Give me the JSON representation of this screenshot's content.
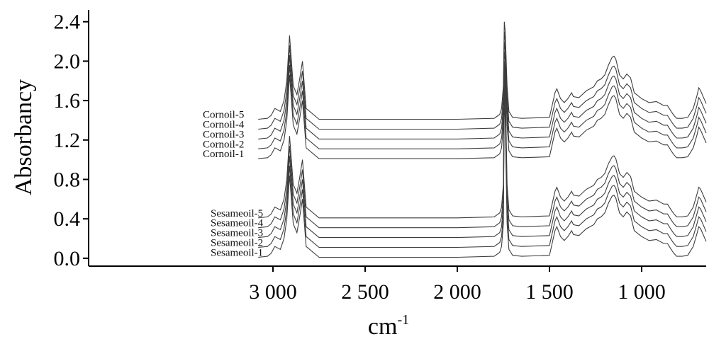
{
  "chart_data": {
    "type": "line",
    "title": "",
    "xlabel": "cm",
    "xlabel_superscript": "-1",
    "ylabel": "Absorbancy",
    "xlim": [
      4000,
      650
    ],
    "ylim": [
      -0.08,
      2.52
    ],
    "x_reversed": true,
    "grid": false,
    "legend": "none",
    "x_ticks": [
      3000,
      2500,
      2000,
      1500,
      1000
    ],
    "x_tick_labels": [
      "3 000",
      "2 500",
      "2 000",
      "1 500",
      "1 000"
    ],
    "y_ticks": [
      0.0,
      0.4,
      0.8,
      1.2,
      1.6,
      2.0,
      2.4
    ],
    "y_tick_labels": [
      "0.0",
      "0.4",
      "0.8",
      "1.2",
      "1.6",
      "2.0",
      "2.4"
    ],
    "line_color": "#3d3d3d",
    "x": [
      3080,
      3030,
      3010,
      2990,
      2960,
      2940,
      2925,
      2910,
      2890,
      2870,
      2855,
      2840,
      2820,
      2750,
      2500,
      2000,
      1800,
      1770,
      1760,
      1750,
      1745,
      1740,
      1730,
      1720,
      1700,
      1650,
      1500,
      1470,
      1460,
      1440,
      1420,
      1400,
      1380,
      1370,
      1340,
      1300,
      1260,
      1240,
      1220,
      1200,
      1180,
      1160,
      1150,
      1140,
      1120,
      1100,
      1080,
      1060,
      1040,
      1000,
      960,
      920,
      880,
      860,
      840,
      825,
      810,
      780,
      750,
      720,
      700,
      690,
      680,
      650
    ],
    "series": [
      {
        "name": "Cornoil-5",
        "values": [
          1.41,
          1.42,
          1.45,
          1.52,
          1.49,
          1.6,
          1.8,
          2.26,
          1.75,
          1.66,
          1.82,
          2.0,
          1.52,
          1.41,
          1.41,
          1.41,
          1.42,
          1.46,
          1.52,
          1.75,
          2.4,
          2.3,
          1.75,
          1.49,
          1.43,
          1.42,
          1.43,
          1.68,
          1.72,
          1.62,
          1.58,
          1.62,
          1.68,
          1.64,
          1.63,
          1.7,
          1.74,
          1.8,
          1.82,
          1.86,
          1.96,
          2.04,
          2.05,
          2.02,
          1.86,
          1.82,
          1.87,
          1.83,
          1.68,
          1.62,
          1.58,
          1.59,
          1.55,
          1.55,
          1.49,
          1.45,
          1.42,
          1.42,
          1.43,
          1.52,
          1.65,
          1.73,
          1.7,
          1.57
        ]
      },
      {
        "name": "Cornoil-4",
        "values": [
          1.31,
          1.32,
          1.35,
          1.42,
          1.39,
          1.5,
          1.7,
          2.16,
          1.65,
          1.56,
          1.72,
          1.9,
          1.42,
          1.31,
          1.31,
          1.31,
          1.32,
          1.36,
          1.42,
          1.65,
          2.3,
          2.2,
          1.65,
          1.39,
          1.33,
          1.32,
          1.33,
          1.58,
          1.62,
          1.52,
          1.48,
          1.52,
          1.58,
          1.54,
          1.53,
          1.6,
          1.64,
          1.7,
          1.72,
          1.76,
          1.86,
          1.94,
          1.95,
          1.92,
          1.76,
          1.72,
          1.77,
          1.73,
          1.58,
          1.52,
          1.48,
          1.49,
          1.45,
          1.45,
          1.39,
          1.35,
          1.32,
          1.32,
          1.33,
          1.42,
          1.55,
          1.63,
          1.6,
          1.47
        ]
      },
      {
        "name": "Cornoil-3",
        "values": [
          1.21,
          1.22,
          1.25,
          1.32,
          1.29,
          1.4,
          1.6,
          2.06,
          1.55,
          1.46,
          1.62,
          1.8,
          1.32,
          1.21,
          1.21,
          1.21,
          1.22,
          1.26,
          1.32,
          1.55,
          2.2,
          2.1,
          1.55,
          1.29,
          1.23,
          1.22,
          1.23,
          1.48,
          1.52,
          1.42,
          1.38,
          1.42,
          1.48,
          1.44,
          1.43,
          1.5,
          1.54,
          1.6,
          1.62,
          1.66,
          1.76,
          1.84,
          1.85,
          1.82,
          1.66,
          1.62,
          1.67,
          1.63,
          1.48,
          1.42,
          1.38,
          1.39,
          1.35,
          1.35,
          1.29,
          1.25,
          1.22,
          1.22,
          1.23,
          1.32,
          1.45,
          1.53,
          1.5,
          1.37
        ]
      },
      {
        "name": "Cornoil-2",
        "values": [
          1.11,
          1.12,
          1.15,
          1.22,
          1.19,
          1.3,
          1.5,
          1.96,
          1.45,
          1.36,
          1.52,
          1.7,
          1.22,
          1.11,
          1.11,
          1.11,
          1.12,
          1.16,
          1.22,
          1.45,
          2.1,
          2.0,
          1.45,
          1.19,
          1.13,
          1.12,
          1.13,
          1.38,
          1.42,
          1.32,
          1.28,
          1.32,
          1.38,
          1.34,
          1.33,
          1.4,
          1.44,
          1.5,
          1.52,
          1.56,
          1.66,
          1.74,
          1.75,
          1.72,
          1.56,
          1.52,
          1.57,
          1.53,
          1.38,
          1.32,
          1.28,
          1.29,
          1.25,
          1.25,
          1.19,
          1.15,
          1.12,
          1.12,
          1.13,
          1.22,
          1.35,
          1.43,
          1.4,
          1.27
        ]
      },
      {
        "name": "Cornoil-1",
        "values": [
          1.01,
          1.02,
          1.05,
          1.12,
          1.09,
          1.2,
          1.4,
          1.86,
          1.35,
          1.26,
          1.42,
          1.6,
          1.12,
          1.01,
          1.01,
          1.01,
          1.02,
          1.06,
          1.12,
          1.35,
          2.0,
          1.9,
          1.35,
          1.09,
          1.03,
          1.02,
          1.03,
          1.28,
          1.32,
          1.22,
          1.18,
          1.22,
          1.28,
          1.24,
          1.23,
          1.3,
          1.34,
          1.4,
          1.42,
          1.46,
          1.56,
          1.64,
          1.65,
          1.62,
          1.46,
          1.42,
          1.47,
          1.43,
          1.28,
          1.22,
          1.18,
          1.19,
          1.15,
          1.15,
          1.09,
          1.05,
          1.02,
          1.02,
          1.03,
          1.12,
          1.25,
          1.33,
          1.3,
          1.17
        ]
      },
      {
        "name": "Sesameoil-5",
        "values": [
          0.41,
          0.42,
          0.45,
          0.52,
          0.49,
          0.6,
          0.8,
          1.24,
          0.75,
          0.66,
          0.82,
          1.0,
          0.52,
          0.41,
          0.41,
          0.41,
          0.42,
          0.46,
          0.52,
          0.75,
          2.0,
          1.8,
          0.75,
          0.49,
          0.43,
          0.42,
          0.43,
          0.68,
          0.72,
          0.62,
          0.58,
          0.62,
          0.68,
          0.64,
          0.63,
          0.7,
          0.74,
          0.8,
          0.82,
          0.86,
          0.96,
          1.03,
          1.04,
          1.01,
          0.86,
          0.82,
          0.87,
          0.83,
          0.68,
          0.62,
          0.58,
          0.59,
          0.55,
          0.55,
          0.49,
          0.45,
          0.42,
          0.42,
          0.43,
          0.52,
          0.65,
          0.72,
          0.7,
          0.57
        ]
      },
      {
        "name": "Sesameoil-4",
        "values": [
          0.31,
          0.32,
          0.35,
          0.42,
          0.39,
          0.5,
          0.7,
          1.14,
          0.65,
          0.56,
          0.72,
          0.9,
          0.42,
          0.31,
          0.31,
          0.31,
          0.32,
          0.36,
          0.42,
          0.65,
          1.9,
          1.7,
          0.65,
          0.39,
          0.33,
          0.32,
          0.33,
          0.58,
          0.62,
          0.52,
          0.48,
          0.52,
          0.58,
          0.54,
          0.53,
          0.6,
          0.64,
          0.7,
          0.72,
          0.76,
          0.86,
          0.93,
          0.94,
          0.91,
          0.76,
          0.72,
          0.77,
          0.73,
          0.58,
          0.52,
          0.48,
          0.49,
          0.45,
          0.45,
          0.39,
          0.35,
          0.32,
          0.32,
          0.33,
          0.42,
          0.55,
          0.62,
          0.6,
          0.47
        ]
      },
      {
        "name": "Sesameoil-3",
        "values": [
          0.21,
          0.22,
          0.25,
          0.32,
          0.29,
          0.4,
          0.6,
          1.04,
          0.55,
          0.46,
          0.62,
          0.8,
          0.32,
          0.21,
          0.21,
          0.21,
          0.22,
          0.26,
          0.32,
          0.55,
          1.8,
          1.6,
          0.55,
          0.29,
          0.23,
          0.22,
          0.23,
          0.48,
          0.52,
          0.42,
          0.38,
          0.42,
          0.48,
          0.44,
          0.43,
          0.5,
          0.54,
          0.6,
          0.62,
          0.66,
          0.76,
          0.83,
          0.84,
          0.81,
          0.66,
          0.62,
          0.67,
          0.63,
          0.48,
          0.42,
          0.38,
          0.39,
          0.35,
          0.35,
          0.29,
          0.25,
          0.22,
          0.22,
          0.23,
          0.32,
          0.45,
          0.52,
          0.5,
          0.37
        ]
      },
      {
        "name": "Sesameoil-2",
        "values": [
          0.11,
          0.12,
          0.15,
          0.22,
          0.19,
          0.3,
          0.5,
          0.94,
          0.45,
          0.36,
          0.52,
          0.7,
          0.22,
          0.11,
          0.11,
          0.11,
          0.12,
          0.16,
          0.22,
          0.45,
          1.7,
          1.5,
          0.45,
          0.19,
          0.13,
          0.12,
          0.13,
          0.38,
          0.42,
          0.32,
          0.28,
          0.32,
          0.38,
          0.34,
          0.33,
          0.4,
          0.44,
          0.5,
          0.52,
          0.56,
          0.66,
          0.73,
          0.74,
          0.71,
          0.56,
          0.52,
          0.57,
          0.53,
          0.38,
          0.32,
          0.28,
          0.29,
          0.25,
          0.25,
          0.19,
          0.15,
          0.12,
          0.12,
          0.13,
          0.22,
          0.35,
          0.42,
          0.4,
          0.27
        ]
      },
      {
        "name": "Sesameoil-1",
        "values": [
          0.01,
          0.02,
          0.05,
          0.12,
          0.09,
          0.2,
          0.4,
          0.84,
          0.35,
          0.26,
          0.42,
          0.6,
          0.12,
          0.01,
          0.01,
          0.01,
          0.02,
          0.06,
          0.12,
          0.35,
          1.6,
          1.4,
          0.35,
          0.09,
          0.03,
          0.02,
          0.03,
          0.28,
          0.32,
          0.22,
          0.18,
          0.22,
          0.28,
          0.24,
          0.23,
          0.3,
          0.34,
          0.4,
          0.42,
          0.46,
          0.56,
          0.63,
          0.64,
          0.61,
          0.46,
          0.42,
          0.47,
          0.43,
          0.28,
          0.22,
          0.18,
          0.19,
          0.15,
          0.15,
          0.09,
          0.05,
          0.02,
          0.02,
          0.03,
          0.12,
          0.25,
          0.32,
          0.3,
          0.17
        ]
      }
    ]
  }
}
